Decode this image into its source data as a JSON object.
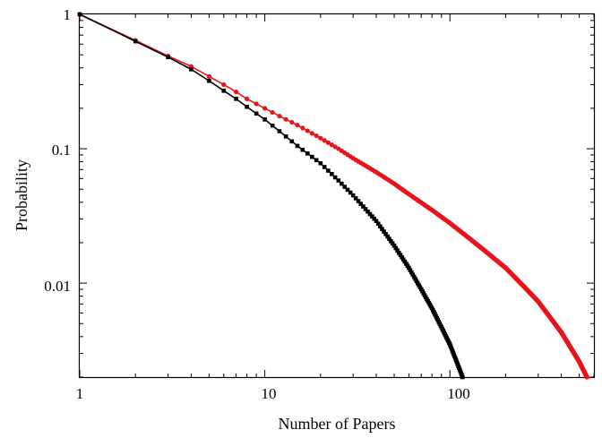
{
  "chart_data": {
    "type": "line",
    "title": "",
    "xlabel": "Number of Papers",
    "ylabel": "Probability",
    "xscale": "log",
    "yscale": "log",
    "xlim": [
      1,
      600
    ],
    "ylim": [
      0.002,
      1
    ],
    "grid": false,
    "xticks": [
      {
        "value": 1,
        "label": "1"
      },
      {
        "value": 10,
        "label": "10"
      },
      {
        "value": 100,
        "label": "100"
      }
    ],
    "yticks": [
      {
        "value": 1,
        "label": "1"
      },
      {
        "value": 0.1,
        "label": "0.1"
      },
      {
        "value": 0.01,
        "label": "0.01"
      }
    ],
    "series": [
      {
        "color": "#e8141c",
        "marker": "circle",
        "points": [
          [
            1,
            1.0
          ],
          [
            2,
            0.64
          ],
          [
            3,
            0.49
          ],
          [
            4,
            0.41
          ],
          [
            5,
            0.345
          ],
          [
            6,
            0.3
          ],
          [
            7,
            0.265
          ],
          [
            8,
            0.235
          ],
          [
            10,
            0.2
          ],
          [
            12,
            0.175
          ],
          [
            15,
            0.15
          ],
          [
            20,
            0.12
          ],
          [
            25,
            0.1
          ],
          [
            30,
            0.085
          ],
          [
            40,
            0.067
          ],
          [
            50,
            0.055
          ],
          [
            60,
            0.046
          ],
          [
            80,
            0.035
          ],
          [
            100,
            0.028
          ],
          [
            120,
            0.023
          ],
          [
            150,
            0.018
          ],
          [
            200,
            0.013
          ],
          [
            250,
            0.0095
          ],
          [
            300,
            0.0073
          ],
          [
            350,
            0.0055
          ],
          [
            400,
            0.0043
          ],
          [
            450,
            0.0033
          ],
          [
            500,
            0.0026
          ],
          [
            550,
            0.002
          ]
        ]
      },
      {
        "color": "#000000",
        "marker": "square",
        "points": [
          [
            1,
            1.0
          ],
          [
            2,
            0.63
          ],
          [
            3,
            0.48
          ],
          [
            4,
            0.39
          ],
          [
            5,
            0.32
          ],
          [
            6,
            0.27
          ],
          [
            7,
            0.235
          ],
          [
            8,
            0.205
          ],
          [
            10,
            0.165
          ],
          [
            12,
            0.135
          ],
          [
            15,
            0.105
          ],
          [
            20,
            0.078
          ],
          [
            25,
            0.058
          ],
          [
            30,
            0.045
          ],
          [
            40,
            0.029
          ],
          [
            50,
            0.019
          ],
          [
            60,
            0.013
          ],
          [
            70,
            0.009
          ],
          [
            80,
            0.0065
          ],
          [
            90,
            0.0047
          ],
          [
            100,
            0.0035
          ],
          [
            110,
            0.0025
          ],
          [
            117,
            0.002
          ]
        ]
      }
    ]
  }
}
